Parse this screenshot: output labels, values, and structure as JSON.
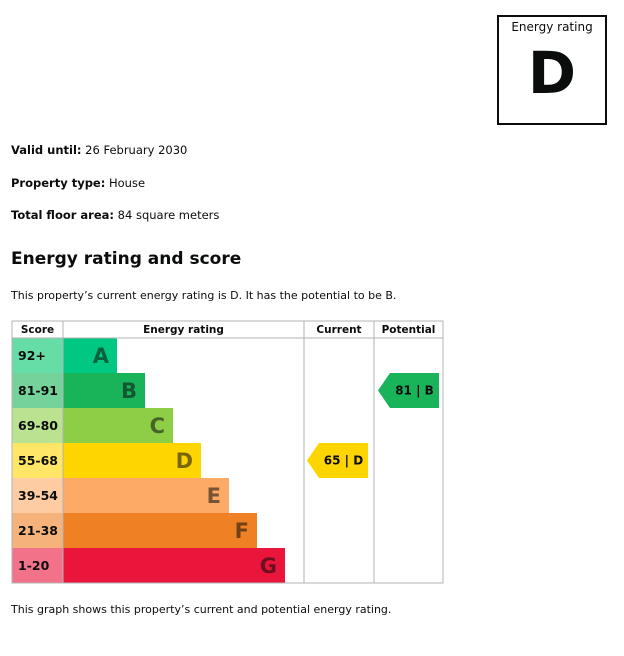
{
  "rating_box": {
    "label": "Energy rating",
    "letter": "D"
  },
  "details": [
    {
      "label": "Valid until:",
      "value": "26 February 2030"
    },
    {
      "label": "Property type:",
      "value": "House"
    },
    {
      "label": "Total floor area:",
      "value": "84 square meters"
    }
  ],
  "section_title": "Energy rating and score",
  "summary": "This property’s current energy rating is D. It has the potential to be B.",
  "footnote": "This graph shows this property’s current and potential energy rating.",
  "chart_data": {
    "type": "table",
    "columns": [
      "Score",
      "Energy rating",
      "Current",
      "Potential"
    ],
    "bands": [
      {
        "score": "92+",
        "letter": "A",
        "color": "#00c781",
        "score_bg": "#66dda7"
      },
      {
        "score": "81-91",
        "letter": "B",
        "color": "#19b459",
        "score_bg": "#75d29b"
      },
      {
        "score": "69-80",
        "letter": "C",
        "color": "#8dce46",
        "score_bg": "#bbe290"
      },
      {
        "score": "55-68",
        "letter": "D",
        "color": "#ffd500",
        "score_bg": "#ffe666"
      },
      {
        "score": "39-54",
        "letter": "E",
        "color": "#fcaa65",
        "score_bg": "#fdcca3"
      },
      {
        "score": "21-38",
        "letter": "F",
        "color": "#ef8023",
        "score_bg": "#f5b37b"
      },
      {
        "score": "1-20",
        "letter": "G",
        "color": "#e9153b",
        "score_bg": "#f27389"
      }
    ],
    "current": {
      "score": 65,
      "letter": "D",
      "label": "65 | D",
      "color": "#ffd500"
    },
    "potential": {
      "score": 81,
      "letter": "B",
      "label": "81 | B",
      "color": "#19b459"
    }
  }
}
